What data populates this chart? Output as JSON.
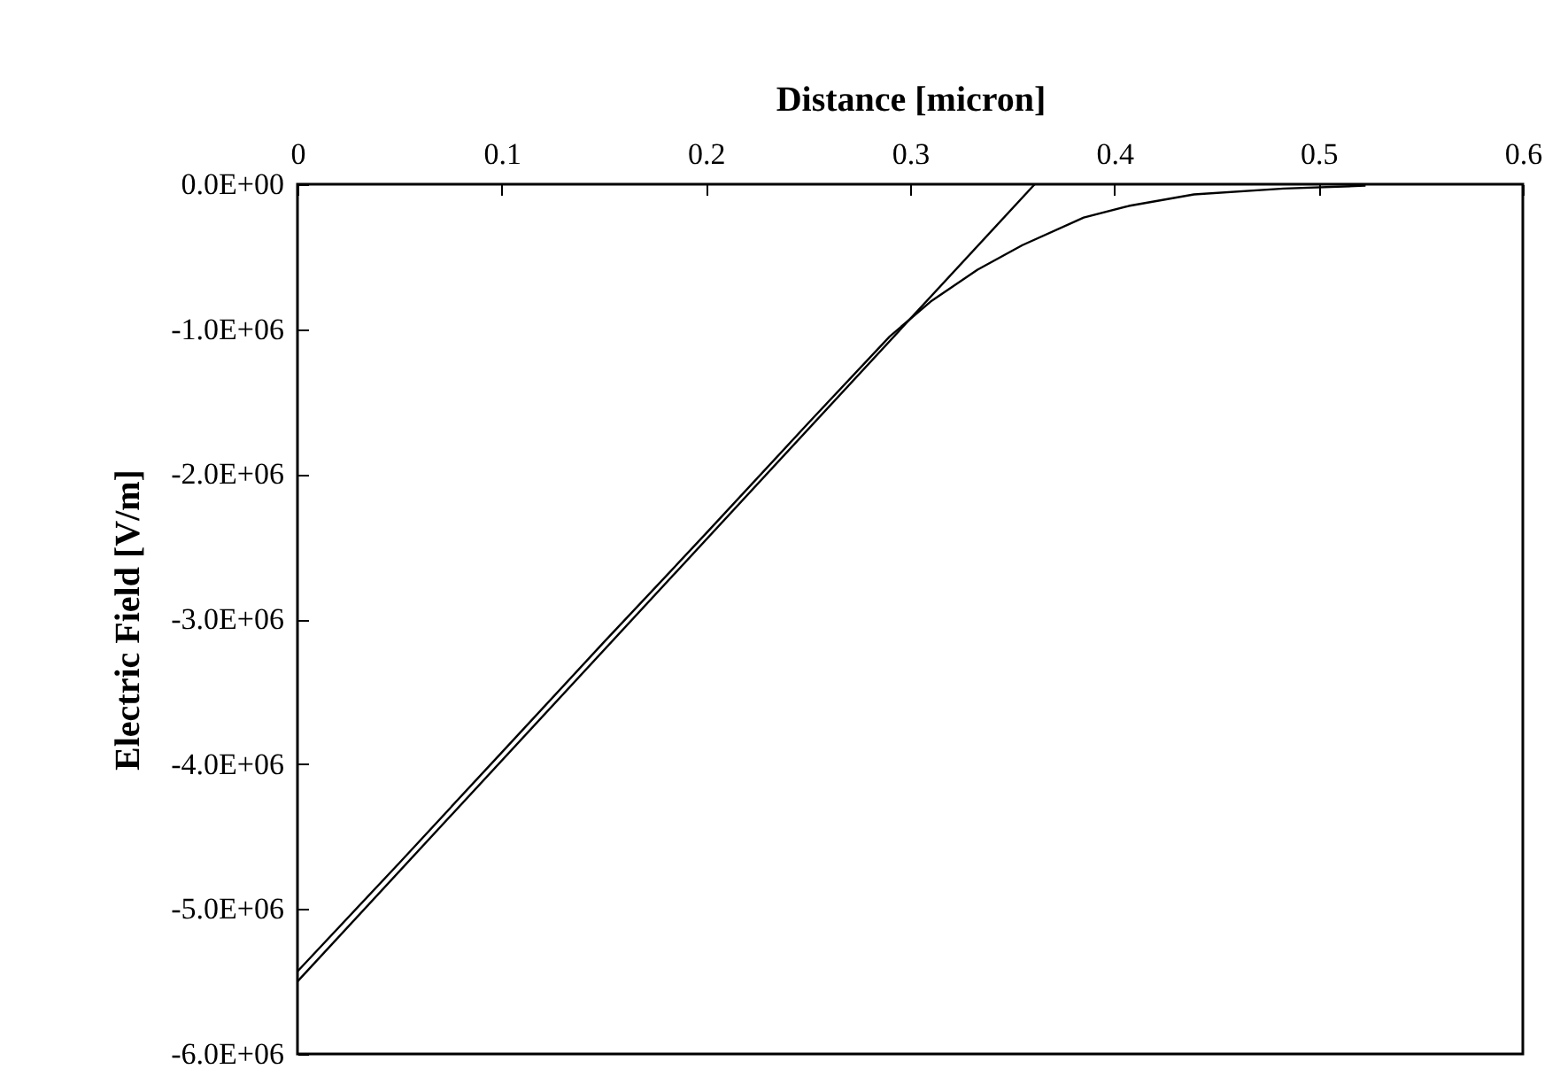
{
  "chart_data": {
    "type": "line",
    "xlabel": "Distance [micron]",
    "ylabel": "Electric Field [V/m]",
    "xlim": [
      0,
      0.6
    ],
    "xticks": [
      0,
      0.1,
      0.2,
      0.3,
      0.4,
      0.5,
      0.6
    ],
    "ylim": [
      -6000000,
      0
    ],
    "yticks": [
      {
        "value": 0,
        "label": "0.0E+00"
      },
      {
        "value": -1000000,
        "label": "-1.0E+06"
      },
      {
        "value": -2000000,
        "label": "-2.0E+06"
      },
      {
        "value": -3000000,
        "label": "-3.0E+06"
      },
      {
        "value": -4000000,
        "label": "-4.0E+06"
      },
      {
        "value": -5000000,
        "label": "-5.0E+06"
      },
      {
        "value": -6000000,
        "label": "-6.0E+06"
      }
    ],
    "grid": false,
    "legend": false,
    "marker": "none",
    "line_style": "solid",
    "series": [
      {
        "color": "#000000",
        "x": [
          0,
          0.361
        ],
        "values": [
          -5500000,
          0
        ]
      },
      {
        "color": "#000000",
        "x": [
          0,
          0.05,
          0.1,
          0.15,
          0.2,
          0.25,
          0.29,
          0.31,
          0.333,
          0.355,
          0.385,
          0.407,
          0.439,
          0.483,
          0.523
        ],
        "values": [
          -5430000,
          -4680000,
          -3920000,
          -3160000,
          -2410000,
          -1650000,
          -1050000,
          -810000,
          -590000,
          -420000,
          -230000,
          -150000,
          -70000,
          -30000,
          -10000
        ]
      }
    ]
  }
}
